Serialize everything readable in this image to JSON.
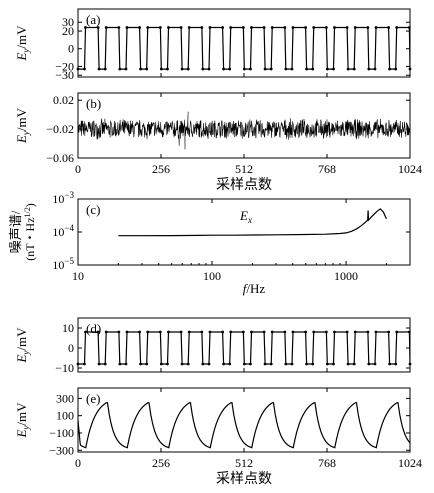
{
  "chart_data": [
    {
      "type": "line",
      "panel_label": "(a)",
      "ylabel": "Ey/mV",
      "ylim": [
        -32,
        45
      ],
      "yticks": [
        30,
        20,
        0,
        -20,
        -30
      ],
      "xlim": [
        0,
        1024
      ],
      "x_tick_labels": [],
      "series": [
        {
          "waveform": "square",
          "period": 128,
          "high": 24,
          "low": -23,
          "x": [
            0,
            20,
            23,
            62,
            65,
            84,
            87,
            126,
            129,
            148,
            151,
            190,
            193,
            212,
            215,
            254,
            257,
            276,
            279,
            318,
            321,
            340,
            343,
            382,
            385,
            404,
            407,
            446,
            449,
            468,
            471,
            510,
            513,
            532,
            535,
            574,
            577,
            596,
            599,
            638,
            641,
            660,
            663,
            702,
            705,
            724,
            727,
            766,
            769,
            788,
            791,
            830,
            833,
            852,
            855,
            894,
            897,
            916,
            919,
            958,
            961,
            980,
            983,
            1022,
            1024
          ],
          "y": [
            -23,
            -23,
            24,
            24,
            -23,
            -23,
            24,
            24,
            -23,
            -23,
            24,
            24,
            -23,
            -23,
            24,
            24,
            -23,
            -23,
            24,
            24,
            -23,
            -23,
            24,
            24,
            -23,
            -23,
            24,
            24,
            -23,
            -23,
            24,
            24,
            -23,
            -23,
            24,
            24,
            -23,
            -23,
            24,
            24,
            -23,
            -23,
            24,
            24,
            -23,
            -23,
            24,
            24,
            -23,
            -23,
            24,
            24,
            -23,
            -23,
            24,
            24,
            -23,
            -23,
            24,
            24,
            -23,
            -23,
            24,
            24,
            -23
          ]
        }
      ]
    },
    {
      "type": "line",
      "panel_label": "(b)",
      "ylabel": "Ey/mV",
      "ylim": [
        -0.06,
        0.03
      ],
      "yticks": [
        0.02,
        -0.02,
        -0.06
      ],
      "ytick_labels": [
        "0.02",
        "−0.02",
        "−0.06"
      ],
      "xlim": [
        0,
        1024
      ],
      "xticks": [
        0,
        256,
        512,
        768,
        1024
      ],
      "xlabel": "采样点数",
      "series": [
        {
          "waveform": "random-noise",
          "mean": -0.02,
          "spread": 0.015,
          "n_points": 1024,
          "spikes": [
            {
              "x": 330,
              "y": -0.048
            },
            {
              "x": 340,
              "y": 0.004
            },
            {
              "x": 312,
              "y": -0.043
            }
          ]
        }
      ]
    },
    {
      "type": "line",
      "panel_label": "(c)",
      "ylabel": "噪声谱/(nT・Hz1/2)",
      "xlabel": "f/Hz",
      "xscale": "log",
      "yscale": "log",
      "xlim": [
        10,
        3000
      ],
      "ylim": [
        1e-05,
        0.001
      ],
      "xticks": [
        10,
        100,
        1000
      ],
      "yticks": [
        0.001,
        0.0001,
        1e-05
      ],
      "annotation": "Ex",
      "series": [
        {
          "name": "Ex",
          "x": [
            20,
            30,
            50,
            80,
            100,
            150,
            200,
            300,
            500,
            700,
            900,
            1000,
            1100,
            1200,
            1300,
            1400,
            1450,
            1460,
            1470,
            1500,
            1550,
            1600,
            1700,
            1800,
            1900,
            2000
          ],
          "y": [
            7.7e-05,
            7.7e-05,
            7.8e-05,
            7.9e-05,
            8e-05,
            8e-05,
            8.1e-05,
            8.2e-05,
            8.4e-05,
            8.6e-05,
            9e-05,
            9.4e-05,
            0.000105,
            0.000125,
            0.000155,
            0.0002,
            0.00023,
            0.00045,
            0.00023,
            0.00025,
            0.00029,
            0.00033,
            0.00042,
            0.0005,
            0.0004,
            0.00025
          ]
        }
      ]
    },
    {
      "type": "line",
      "panel_label": "(d)",
      "ylabel": "Ey/mV",
      "ylim": [
        -12,
        15
      ],
      "yticks": [
        10,
        0,
        -10
      ],
      "ytick_labels": [
        "10",
        "0",
        "−10"
      ],
      "xlim": [
        0,
        1024
      ],
      "x_tick_labels": [],
      "series": [
        {
          "waveform": "square",
          "period": 128,
          "high": 8,
          "low": -8,
          "x": [
            0,
            20,
            23,
            62,
            65,
            84,
            87,
            126,
            129,
            148,
            151,
            190,
            193,
            212,
            215,
            254,
            257,
            276,
            279,
            318,
            321,
            340,
            343,
            382,
            385,
            404,
            407,
            446,
            449,
            468,
            471,
            510,
            513,
            532,
            535,
            574,
            577,
            596,
            599,
            638,
            641,
            660,
            663,
            702,
            705,
            724,
            727,
            766,
            769,
            788,
            791,
            830,
            833,
            852,
            855,
            894,
            897,
            916,
            919,
            958,
            961,
            980,
            983,
            1022,
            1024
          ],
          "y": [
            -8,
            -8,
            8,
            8,
            -8,
            -8,
            8,
            8,
            -8,
            -8,
            8,
            8,
            -8,
            -8,
            8,
            8,
            -8,
            -8,
            8,
            8,
            -8,
            -8,
            8,
            8,
            -8,
            -8,
            8,
            8,
            -8,
            -8,
            8,
            8,
            -8,
            -8,
            8,
            8,
            -8,
            -8,
            8,
            8,
            -8,
            -8,
            8,
            8,
            -8,
            -8,
            8,
            8,
            -8,
            -8,
            8,
            8,
            -8,
            -8,
            8,
            8,
            -8,
            -8,
            8,
            8,
            -8,
            -8,
            8,
            8,
            -8
          ]
        }
      ]
    },
    {
      "type": "line",
      "panel_label": "(e)",
      "ylabel": "Ey/mV",
      "ylim": [
        -320,
        420
      ],
      "yticks": [
        300,
        100,
        -100,
        -300
      ],
      "ytick_labels": [
        "300",
        "100",
        "−100",
        "−300"
      ],
      "xlim": [
        0,
        1024
      ],
      "xticks": [
        0,
        256,
        512,
        768,
        1024
      ],
      "xlabel": "采样点数",
      "series": [
        {
          "waveform": "rc-charge-discharge",
          "period": 128,
          "max": 250,
          "min": -270,
          "first_peak_x": 88,
          "start_y": 50
        }
      ]
    }
  ]
}
